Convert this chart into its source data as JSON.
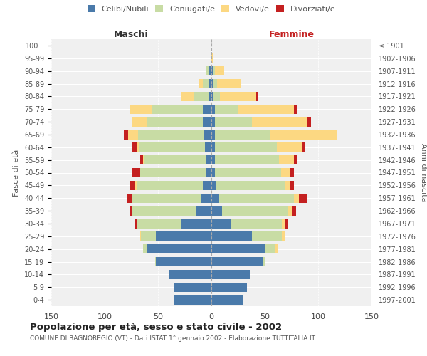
{
  "age_groups": [
    "100+",
    "95-99",
    "90-94",
    "85-89",
    "80-84",
    "75-79",
    "70-74",
    "65-69",
    "60-64",
    "55-59",
    "50-54",
    "45-49",
    "40-44",
    "35-39",
    "30-34",
    "25-29",
    "20-24",
    "15-19",
    "10-14",
    "5-9",
    "0-4"
  ],
  "birth_years": [
    "≤ 1901",
    "1902-1906",
    "1907-1911",
    "1912-1916",
    "1917-1921",
    "1922-1926",
    "1927-1931",
    "1932-1936",
    "1937-1941",
    "1942-1946",
    "1947-1951",
    "1952-1956",
    "1957-1961",
    "1962-1966",
    "1967-1971",
    "1972-1976",
    "1977-1981",
    "1982-1986",
    "1987-1991",
    "1992-1996",
    "1997-2001"
  ],
  "male": {
    "celibi": [
      0,
      0,
      2,
      2,
      3,
      8,
      8,
      7,
      6,
      5,
      5,
      8,
      10,
      14,
      28,
      52,
      60,
      52,
      40,
      35,
      35
    ],
    "coniugati": [
      0,
      0,
      3,
      6,
      14,
      48,
      52,
      62,
      62,
      58,
      62,
      62,
      65,
      60,
      42,
      14,
      4,
      1,
      0,
      0,
      0
    ],
    "vedovi": [
      0,
      0,
      0,
      4,
      12,
      20,
      14,
      9,
      2,
      1,
      0,
      2,
      0,
      0,
      0,
      1,
      0,
      0,
      0,
      0,
      0
    ],
    "divorziati": [
      0,
      0,
      0,
      0,
      0,
      0,
      0,
      4,
      4,
      3,
      7,
      4,
      4,
      3,
      2,
      0,
      0,
      0,
      0,
      0,
      0
    ]
  },
  "female": {
    "nubili": [
      0,
      0,
      1,
      1,
      1,
      3,
      3,
      3,
      3,
      3,
      3,
      4,
      7,
      10,
      18,
      38,
      50,
      48,
      36,
      33,
      30
    ],
    "coniugate": [
      0,
      0,
      2,
      4,
      7,
      22,
      35,
      52,
      58,
      60,
      62,
      65,
      70,
      62,
      48,
      28,
      10,
      2,
      0,
      0,
      0
    ],
    "vedove": [
      0,
      2,
      9,
      22,
      34,
      52,
      52,
      62,
      24,
      14,
      9,
      5,
      5,
      3,
      3,
      3,
      2,
      0,
      0,
      0,
      0
    ],
    "divorziate": [
      0,
      0,
      0,
      1,
      2,
      3,
      3,
      0,
      3,
      3,
      3,
      3,
      7,
      4,
      2,
      0,
      0,
      0,
      0,
      0,
      0
    ]
  },
  "colors": {
    "celibi": "#4a7aaa",
    "coniugati": "#c8dca4",
    "vedovi": "#fcd882",
    "divorziati": "#c42020"
  },
  "title": "Popolazione per età, sesso e stato civile - 2002",
  "subtitle": "COMUNE DI BAGNOREGIO (VT) - Dati ISTAT 1° gennaio 2002 - Elaborazione TUTTITALIA.IT",
  "xlabel_left": "Maschi",
  "xlabel_right": "Femmine",
  "ylabel_left": "Fasce di età",
  "ylabel_right": "Anni di nascita",
  "xlim": 150,
  "legend_labels": [
    "Celibi/Nubili",
    "Coniugati/e",
    "Vedovi/e",
    "Divorziati/e"
  ],
  "bg_color": "#f0f0f0",
  "fig_bg": "#ffffff"
}
